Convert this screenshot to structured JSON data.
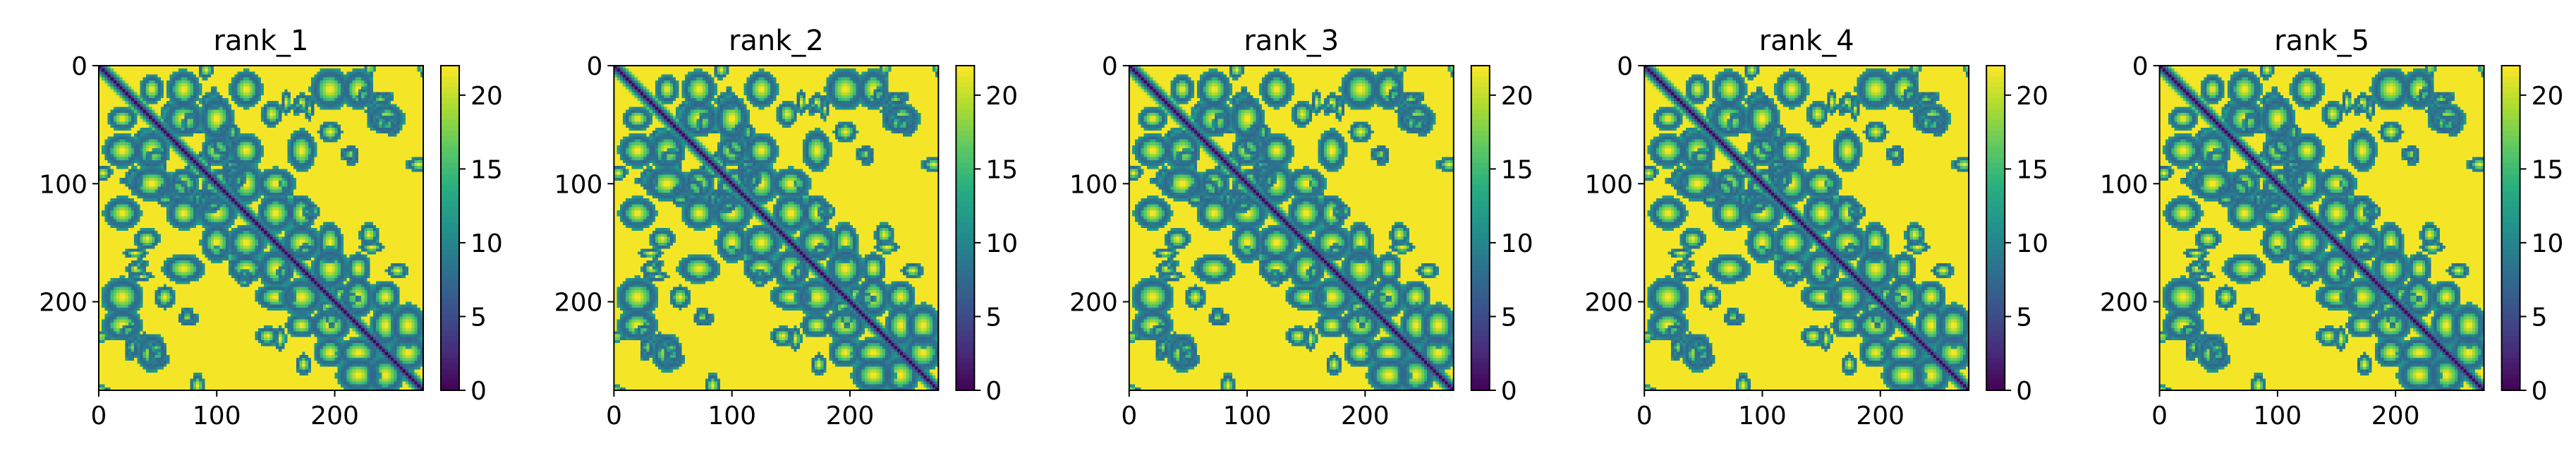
{
  "figure": {
    "background": "#ffffff"
  },
  "colormap": {
    "name": "viridis",
    "stops": [
      "#440154",
      "#472d7b",
      "#3b528b",
      "#2c728e",
      "#21918c",
      "#28ae80",
      "#5ec962",
      "#addc30",
      "#fde725"
    ]
  },
  "chart_data": [
    {
      "type": "heatmap",
      "title": "rank_1",
      "xlabel": "",
      "ylabel": "",
      "xlim": [
        0,
        275
      ],
      "ylim": [
        275,
        0
      ],
      "x_ticks": [
        0,
        100,
        200
      ],
      "y_ticks": [
        0,
        100,
        200
      ],
      "colorbar": {
        "range": [
          0,
          22
        ],
        "ticks": [
          0,
          5,
          10,
          15,
          20
        ]
      },
      "matrix_size": 275,
      "description_of_values": "pairwise distance matrix; ~0 on diagonal, saturates at ~21.7"
    },
    {
      "type": "heatmap",
      "title": "rank_2",
      "xlabel": "",
      "ylabel": "",
      "xlim": [
        0,
        275
      ],
      "ylim": [
        275,
        0
      ],
      "x_ticks": [
        0,
        100,
        200
      ],
      "y_ticks": [
        0,
        100,
        200
      ],
      "colorbar": {
        "range": [
          0,
          22
        ],
        "ticks": [
          0,
          5,
          10,
          15,
          20
        ]
      },
      "matrix_size": 275
    },
    {
      "type": "heatmap",
      "title": "rank_3",
      "xlabel": "",
      "ylabel": "",
      "xlim": [
        0,
        275
      ],
      "ylim": [
        275,
        0
      ],
      "x_ticks": [
        0,
        100,
        200
      ],
      "y_ticks": [
        0,
        100,
        200
      ],
      "colorbar": {
        "range": [
          0,
          22
        ],
        "ticks": [
          0,
          5,
          10,
          15,
          20
        ]
      },
      "matrix_size": 275
    },
    {
      "type": "heatmap",
      "title": "rank_4",
      "xlabel": "",
      "ylabel": "",
      "xlim": [
        0,
        275
      ],
      "ylim": [
        275,
        0
      ],
      "x_ticks": [
        0,
        100,
        200
      ],
      "y_ticks": [
        0,
        100,
        200
      ],
      "colorbar": {
        "range": [
          0,
          22
        ],
        "ticks": [
          0,
          5,
          10,
          15,
          20
        ]
      },
      "matrix_size": 275
    },
    {
      "type": "heatmap",
      "title": "rank_5",
      "xlabel": "",
      "ylabel": "",
      "xlim": [
        0,
        275
      ],
      "ylim": [
        275,
        0
      ],
      "x_ticks": [
        0,
        100,
        200
      ],
      "y_ticks": [
        0,
        100,
        200
      ],
      "colorbar": {
        "range": [
          0,
          22
        ],
        "ticks": [
          0,
          5,
          10,
          15,
          20
        ]
      },
      "matrix_size": 275
    }
  ]
}
